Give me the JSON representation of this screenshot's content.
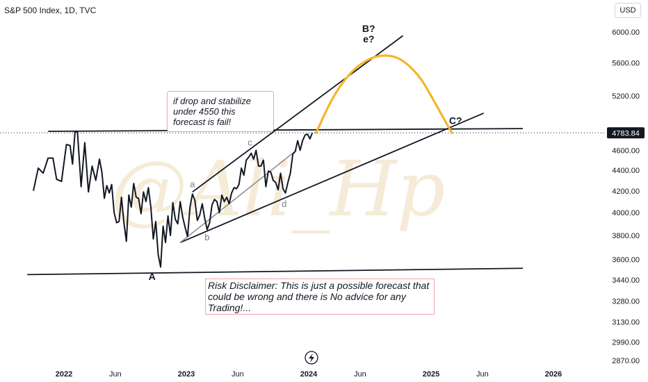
{
  "header": {
    "title": "S&P 500 Index, 1D, TVC",
    "currency_button": "USD"
  },
  "price_badge": "4783.84",
  "watermark": "@Ali_Hp",
  "notes": {
    "fail_condition": "if drop and stabilize under 4550 this forecast is fail!",
    "disclaimer": "Risk Disclaimer: This is just a possible forecast that could be wrong and there is No advice for any Trading!..."
  },
  "colors": {
    "price_line": "#131722",
    "arc": "#f5b52a",
    "support_line": "#888888",
    "badge_bg": "#131722",
    "note_border": "#f5a0a8"
  },
  "chart_data": {
    "type": "line",
    "series": [
      {
        "x": [
          2021.75,
          2021.79,
          2021.83,
          2021.87,
          2021.91,
          2021.94,
          2021.98,
          2022.02,
          2022.05,
          2022.07,
          2022.09,
          2022.11,
          2022.14,
          2022.17,
          2022.2,
          2022.23,
          2022.26,
          2022.29,
          2022.31,
          2022.33,
          2022.35,
          2022.37,
          2022.39,
          2022.41,
          2022.43,
          2022.45,
          2022.47,
          2022.49,
          2022.51,
          2022.53,
          2022.55,
          2022.57,
          2022.59,
          2022.61,
          2022.63,
          2022.65,
          2022.67,
          2022.69,
          2022.71,
          2022.73,
          2022.75,
          2022.77,
          2022.79,
          2022.81,
          2022.83,
          2022.85,
          2022.87,
          2022.89,
          2022.91,
          2022.93,
          2022.95,
          2022.97,
          2022.99,
          2023.01,
          2023.03,
          2023.05,
          2023.07,
          2023.09,
          2023.11,
          2023.13,
          2023.15,
          2023.17,
          2023.19,
          2023.21,
          2023.23,
          2023.25,
          2023.27,
          2023.29,
          2023.31,
          2023.33,
          2023.35,
          2023.37,
          2023.39,
          2023.41,
          2023.43,
          2023.45,
          2023.47,
          2023.49,
          2023.51,
          2023.53,
          2023.55,
          2023.57,
          2023.59,
          2023.61,
          2023.63,
          2023.65,
          2023.67,
          2023.69,
          2023.71,
          2023.73,
          2023.75,
          2023.77,
          2023.79,
          2023.81,
          2023.83,
          2023.85,
          2023.87,
          2023.89,
          2023.91,
          2023.93,
          2023.95,
          2023.97,
          2023.99,
          2024.01,
          2024.03
        ],
        "y": [
          4200,
          4420,
          4370,
          4520,
          4520,
          4310,
          4290,
          4660,
          4650,
          4460,
          4790,
          4800,
          4240,
          4680,
          4190,
          4440,
          4300,
          4510,
          4380,
          4130,
          4250,
          4180,
          4260,
          4000,
          3910,
          3920,
          4140,
          3910,
          3750,
          4160,
          4050,
          4270,
          4140,
          4130,
          3990,
          4190,
          4100,
          4230,
          4050,
          3770,
          3920,
          3640,
          3540,
          3880,
          3740,
          3970,
          3800,
          4090,
          3940,
          3900,
          4100,
          3960,
          3870,
          3790,
          4050,
          4170,
          4110,
          3930,
          3980,
          4080,
          3950,
          3850,
          3910,
          4070,
          4120,
          4100,
          4000,
          4160,
          4100,
          4140,
          4080,
          4180,
          4230,
          4220,
          4260,
          4420,
          4350,
          4500,
          4530,
          4570,
          4510,
          4600,
          4440,
          4440,
          4500,
          4240,
          4390,
          4380,
          4300,
          4280,
          4210,
          4370,
          4220,
          4180,
          4280,
          4370,
          4560,
          4590,
          4700,
          4600,
          4700,
          4760,
          4770,
          4720,
          4783.84
        ]
      }
    ],
    "forecast_arc": {
      "x": [
        2024.06,
        2024.2,
        2024.35,
        2024.5,
        2024.62,
        2024.75,
        2024.9,
        2025.0,
        2025.17
      ],
      "y": [
        4783,
        5200,
        5500,
        5660,
        5700,
        5660,
        5450,
        5200,
        4783
      ]
    },
    "trendlines": [
      {
        "x1": 2021.87,
        "y1": 4800,
        "x2": 2025.75,
        "y2": 4830
      },
      {
        "x1": 2023.05,
        "y1": 4190,
        "x2": 2024.77,
        "y2": 5950
      },
      {
        "x1": 2022.95,
        "y1": 3740,
        "x2": 2025.43,
        "y2": 5000
      },
      {
        "x1": 2021.7,
        "y1": 3480,
        "x2": 2025.75,
        "y2": 3530
      },
      {
        "x1": 2022.95,
        "y1": 3740,
        "x2": 2023.9,
        "y2": 4600
      }
    ],
    "wave_labels": [
      {
        "text": "A",
        "x": 2022.72,
        "y": 3440
      },
      {
        "text": "a",
        "x": 2023.05,
        "y": 4235
      },
      {
        "text": "b",
        "x": 2023.17,
        "y": 3760
      },
      {
        "text": "c",
        "x": 2023.52,
        "y": 4650
      },
      {
        "text": "d",
        "x": 2023.8,
        "y": 4050
      },
      {
        "text": "B?",
        "x": 2024.49,
        "y": 6000
      },
      {
        "text": "e?",
        "x": 2024.49,
        "y": 5860
      },
      {
        "text": "C?",
        "x": 2025.2,
        "y": 4880
      }
    ],
    "yticks": [
      2870,
      2990,
      3130,
      3280,
      3440,
      3600,
      3800,
      4000,
      4200,
      4400,
      4600,
      5200,
      5600,
      6000
    ],
    "ytick_labels": [
      "2870.00",
      "2990.00",
      "3130.00",
      "3280.00",
      "3440.00",
      "3600.00",
      "3800.00",
      "4000.00",
      "4200.00",
      "4400.00",
      "4600.00",
      "5200.00",
      "5600.00",
      "6000.00"
    ],
    "xticks": [
      {
        "label": "2022",
        "x": 2022.0,
        "bold": true
      },
      {
        "label": "Jun",
        "x": 2022.42,
        "bold": false
      },
      {
        "label": "2023",
        "x": 2023.0,
        "bold": true
      },
      {
        "label": "Jun",
        "x": 2023.42,
        "bold": false
      },
      {
        "label": "2024",
        "x": 2024.0,
        "bold": true
      },
      {
        "label": "Jun",
        "x": 2024.42,
        "bold": false
      },
      {
        "label": "2025",
        "x": 2025.0,
        "bold": true
      },
      {
        "label": "Jun",
        "x": 2025.42,
        "bold": false
      },
      {
        "label": "2026",
        "x": 2026.0,
        "bold": true
      }
    ],
    "yscale": "log",
    "last_price": 4783.84
  }
}
